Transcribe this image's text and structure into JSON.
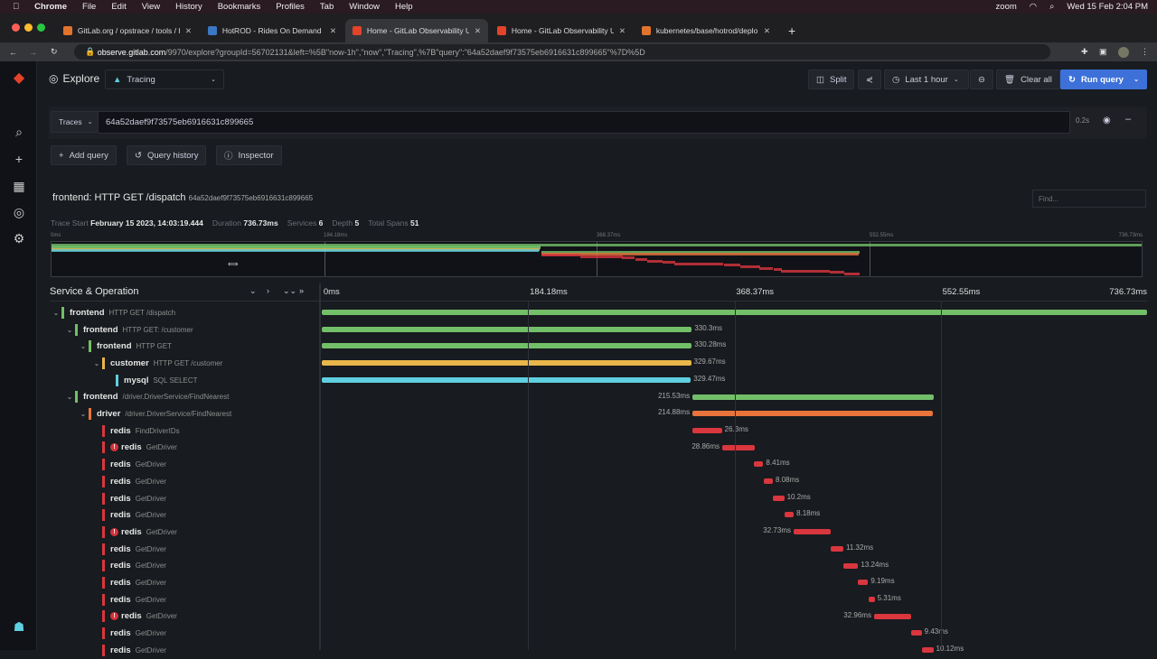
{
  "os_menubar": {
    "app": "Chrome",
    "items": [
      "File",
      "Edit",
      "View",
      "History",
      "Bookmarks",
      "Profiles",
      "Tab",
      "Window",
      "Help"
    ],
    "right": [
      "zoom"
    ],
    "clock": "Wed 15 Feb  2:04 PM"
  },
  "browser": {
    "tabs": [
      {
        "title": "GitLab.org / opstrace / tools / h",
        "color": "#e2732d"
      },
      {
        "title": "HotROD - Rides On Demand",
        "color": "#3a78c4"
      },
      {
        "title": "Home - GitLab Observability U",
        "color": "#e24329",
        "active": true
      },
      {
        "title": "Home - GitLab Observability U",
        "color": "#e24329"
      },
      {
        "title": "kubernetes/base/hotrod/deplo",
        "color": "#e2732d"
      }
    ],
    "url_host": "observe.gitlab.com",
    "url_path": "/9970/explore?groupId=56702131&left=%5B\"now-1h\",\"now\",\"Tracing\",%7B\"query\":\"64a52daef9f73575eb6916631c899665\"%7D%5D"
  },
  "toolbar": {
    "title": "Explore",
    "datasource": "Tracing",
    "split": "Split",
    "time_range": "Last 1 hour",
    "clear_all": "Clear all",
    "run_query": "Run query"
  },
  "query": {
    "type": "Traces",
    "value": "64a52daef9f73575eb6916631c899665",
    "time": "0.2s",
    "add_query": "Add query",
    "query_history": "Query history",
    "inspector": "Inspector"
  },
  "trace": {
    "title": "frontend: HTTP GET /dispatch",
    "trace_id": "64a52daef9f73575eb6916631c899665",
    "find_placeholder": "Find...",
    "meta": [
      {
        "label": "Trace Start",
        "value": "February 15 2023, 14:03:19.444"
      },
      {
        "label": "Duration",
        "value": "736.73ms"
      },
      {
        "label": "Services",
        "value": "6"
      },
      {
        "label": "Depth",
        "value": "5"
      },
      {
        "label": "Total Spans",
        "value": "51"
      }
    ],
    "ticks": [
      "0ms",
      "184.18ms",
      "368.37ms",
      "552.55ms",
      "736.73ms"
    ],
    "total_ms": 736.73,
    "header": "Service & Operation",
    "colors": {
      "frontend": "#73bf69",
      "customer": "#e8b64a",
      "mysql": "#5ecfe0",
      "driver": "#e8743b",
      "redis": "#d9363e"
    },
    "spans": [
      {
        "service": "frontend",
        "op": "HTTP GET /dispatch",
        "depth": 0,
        "expand": true,
        "start": 0,
        "dur": 736.73,
        "label": ""
      },
      {
        "service": "frontend",
        "op": "HTTP GET: /customer",
        "depth": 1,
        "expand": true,
        "start": 0,
        "dur": 330.3,
        "label": "330.3ms"
      },
      {
        "service": "frontend",
        "op": "HTTP GET",
        "depth": 2,
        "expand": true,
        "start": 0,
        "dur": 330.28,
        "label": "330.28ms"
      },
      {
        "service": "customer",
        "op": "HTTP GET /customer",
        "depth": 3,
        "expand": true,
        "start": 0,
        "dur": 329.67,
        "label": "329.67ms"
      },
      {
        "service": "mysql",
        "op": "SQL SELECT",
        "depth": 4,
        "start": 0,
        "dur": 329.47,
        "label": "329.47ms"
      },
      {
        "service": "frontend",
        "op": "/driver.DriverService/FindNearest",
        "depth": 1,
        "expand": true,
        "start": 330.9,
        "dur": 215.53,
        "label": "215.53ms"
      },
      {
        "service": "driver",
        "op": "/driver.DriverService/FindNearest",
        "depth": 2,
        "expand": true,
        "start": 330.9,
        "dur": 214.88,
        "label": "214.88ms"
      },
      {
        "service": "redis",
        "op": "FindDriverIDs",
        "depth": 3,
        "start": 330.9,
        "dur": 26.3,
        "label": "26.3ms"
      },
      {
        "service": "redis",
        "op": "GetDriver",
        "depth": 3,
        "error": true,
        "start": 357.5,
        "dur": 28.86,
        "label": "28.86ms"
      },
      {
        "service": "redis",
        "op": "GetDriver",
        "depth": 3,
        "start": 385.7,
        "dur": 8.41,
        "label": "8.41ms"
      },
      {
        "service": "redis",
        "op": "GetDriver",
        "depth": 3,
        "start": 394.6,
        "dur": 8.08,
        "label": "8.08ms"
      },
      {
        "service": "redis",
        "op": "GetDriver",
        "depth": 3,
        "start": 402.6,
        "dur": 10.2,
        "label": "10.2ms"
      },
      {
        "service": "redis",
        "op": "GetDriver",
        "depth": 3,
        "start": 413.1,
        "dur": 8.18,
        "label": "8.18ms"
      },
      {
        "service": "redis",
        "op": "GetDriver",
        "depth": 3,
        "error": true,
        "start": 421.2,
        "dur": 32.73,
        "label": "32.73ms"
      },
      {
        "service": "redis",
        "op": "GetDriver",
        "depth": 3,
        "start": 454.3,
        "dur": 11.32,
        "label": "11.32ms"
      },
      {
        "service": "redis",
        "op": "GetDriver",
        "depth": 3,
        "start": 465.6,
        "dur": 13.24,
        "label": "13.24ms"
      },
      {
        "service": "redis",
        "op": "GetDriver",
        "depth": 3,
        "start": 478.5,
        "dur": 9.19,
        "label": "9.19ms"
      },
      {
        "service": "redis",
        "op": "GetDriver",
        "depth": 3,
        "start": 488.2,
        "dur": 5.31,
        "label": "5.31ms"
      },
      {
        "service": "redis",
        "op": "GetDriver",
        "depth": 3,
        "error": true,
        "start": 493.0,
        "dur": 32.96,
        "label": "32.96ms"
      },
      {
        "service": "redis",
        "op": "GetDriver",
        "depth": 3,
        "start": 526.1,
        "dur": 9.43,
        "label": "9.43ms"
      },
      {
        "service": "redis",
        "op": "GetDriver",
        "depth": 3,
        "start": 535.8,
        "dur": 10.12,
        "label": "10.12ms"
      }
    ]
  }
}
